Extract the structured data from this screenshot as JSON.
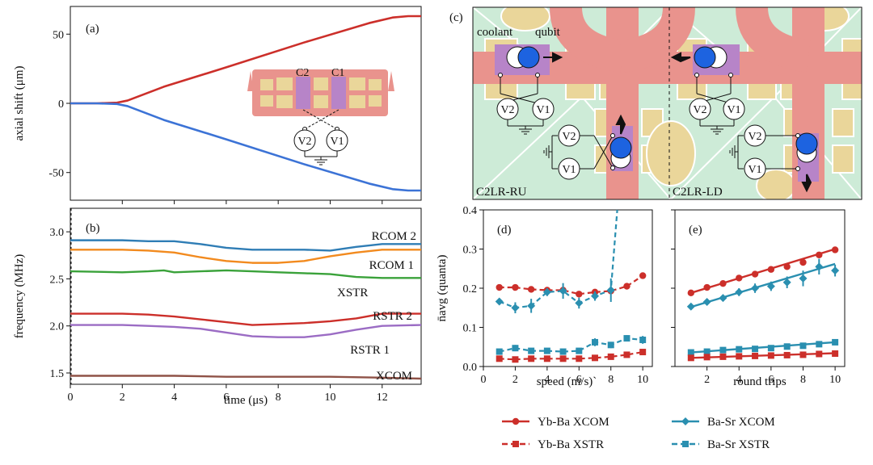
{
  "colors": {
    "red": "#cc2f2a",
    "blue": "#3c73d6",
    "teal": "#2a8fb0",
    "rcom2": "#2f7db5",
    "rcom1": "#f28a1e",
    "xstr": "#3aa23a",
    "rstr2": "#cc2f2a",
    "rstr1": "#9b6cc4",
    "xcom": "#8f5247",
    "trapPink": "#e9938d",
    "trapTan": "#ead69a",
    "trapPurple": "#b784c8",
    "trapGreen": "#cdebd7",
    "ionBlue": "#1d63e0"
  },
  "chart_data": [
    {
      "panel": "a",
      "label": "(a)",
      "type": "line",
      "xlabel": "",
      "ylabel": "axial shift (μm)",
      "xlim": [
        0,
        13.5
      ],
      "ylim": [
        -70,
        70
      ],
      "yticks": [
        -50,
        0,
        50
      ],
      "series": [
        {
          "key": "upper",
          "x": [
            0,
            1,
            1.8,
            2.2,
            3.6,
            6,
            9,
            11.5,
            12.4,
            13,
            13.5
          ],
          "values": [
            0,
            0,
            0.5,
            2,
            12,
            26,
            44,
            58,
            62,
            63,
            63
          ]
        },
        {
          "key": "lower",
          "x": [
            0,
            1,
            1.8,
            2.2,
            3.6,
            6,
            9,
            11.5,
            12.4,
            13,
            13.5
          ],
          "values": [
            0,
            0,
            -0.5,
            -2,
            -12,
            -26,
            -44,
            -58,
            -62,
            -63,
            -63
          ]
        }
      ],
      "inset": {
        "labels": [
          "C2",
          "C1"
        ],
        "voltages": [
          "V2",
          "V1"
        ]
      }
    },
    {
      "panel": "b",
      "label": "(b)",
      "type": "line",
      "xlabel": "time  (μs)",
      "ylabel": "frequency (MHz)",
      "xlim": [
        0,
        13.5
      ],
      "ylim": [
        1.38,
        3.25
      ],
      "xticks": [
        0,
        2,
        4,
        6,
        8,
        10,
        12
      ],
      "yticks": [
        1.5,
        2.0,
        2.5,
        3.0
      ],
      "series": [
        {
          "name": "RCOM 2",
          "x": [
            0,
            2,
            3,
            4,
            5,
            6,
            7,
            8,
            9,
            10,
            11,
            12,
            13.5
          ],
          "values": [
            2.91,
            2.91,
            2.9,
            2.9,
            2.87,
            2.83,
            2.81,
            2.81,
            2.81,
            2.8,
            2.84,
            2.87,
            2.87
          ]
        },
        {
          "name": "RCOM 1",
          "x": [
            0,
            2,
            3,
            4,
            5,
            6,
            7,
            8,
            9,
            10,
            11,
            12,
            13.5
          ],
          "values": [
            2.81,
            2.81,
            2.8,
            2.78,
            2.73,
            2.69,
            2.67,
            2.67,
            2.69,
            2.74,
            2.78,
            2.81,
            2.81
          ]
        },
        {
          "name": "XSTR",
          "x": [
            0,
            2,
            3,
            3.6,
            4,
            5,
            6,
            7,
            8,
            9,
            10,
            11,
            12,
            13.5
          ],
          "values": [
            2.58,
            2.57,
            2.58,
            2.59,
            2.57,
            2.58,
            2.59,
            2.58,
            2.57,
            2.56,
            2.55,
            2.52,
            2.51,
            2.51
          ]
        },
        {
          "name": "RSTR 2",
          "x": [
            0,
            2,
            3,
            4,
            5,
            6,
            7,
            8,
            9,
            10,
            11,
            12,
            13.5
          ],
          "values": [
            2.13,
            2.13,
            2.12,
            2.1,
            2.07,
            2.04,
            2.01,
            2.02,
            2.03,
            2.05,
            2.08,
            2.13,
            2.13
          ]
        },
        {
          "name": "RSTR 1",
          "x": [
            0,
            2,
            3,
            4,
            5,
            6,
            7,
            8,
            9,
            10,
            11,
            12,
            13.5
          ],
          "values": [
            2.01,
            2.01,
            2.0,
            1.99,
            1.97,
            1.93,
            1.89,
            1.88,
            1.88,
            1.91,
            1.96,
            2.0,
            2.01
          ]
        },
        {
          "name": "XCOM",
          "x": [
            0,
            2,
            4,
            6,
            8,
            10,
            12,
            13.5
          ],
          "values": [
            1.47,
            1.47,
            1.47,
            1.46,
            1.46,
            1.46,
            1.45,
            1.44
          ]
        }
      ]
    },
    {
      "panel": "d",
      "label": "(d)",
      "type": "scatter",
      "xlabel": "speed (m/s)`",
      "ylabel": "n̄avg (quanta)",
      "xlim": [
        0,
        10.6
      ],
      "ylim": [
        0,
        0.4
      ],
      "xticks": [
        0,
        2,
        4,
        6,
        8,
        10
      ],
      "yticks": [
        0.0,
        0.1,
        0.2,
        0.3,
        0.4
      ],
      "series": [
        {
          "name": "Yb-Ba XCOM",
          "x": [
            1,
            2,
            3,
            4,
            5,
            6,
            7,
            8,
            9,
            10
          ],
          "values": [
            0.202,
            0.202,
            0.197,
            0.195,
            0.195,
            0.185,
            0.19,
            0.193,
            0.205,
            0.232
          ],
          "err": [
            0.004,
            0.004,
            0.004,
            0.006,
            0.005,
            0.005,
            0.005,
            0.006,
            0.006,
            0.006
          ]
        },
        {
          "name": "Ba-Sr XCOM",
          "x": [
            1,
            2,
            3,
            4,
            5,
            6,
            7,
            8
          ],
          "values": [
            0.166,
            0.15,
            0.155,
            0.19,
            0.193,
            0.162,
            0.18,
            0.195
          ],
          "err": [
            0.008,
            0.014,
            0.018,
            0.01,
            0.02,
            0.014,
            0.012,
            0.03
          ],
          "divergeTo": 8.4
        },
        {
          "name": "Yb-Ba XSTR",
          "x": [
            1,
            2,
            3,
            4,
            5,
            6,
            7,
            8,
            9,
            10
          ],
          "values": [
            0.02,
            0.018,
            0.02,
            0.02,
            0.02,
            0.02,
            0.022,
            0.025,
            0.03,
            0.037
          ],
          "err": [
            0.003,
            0.003,
            0.003,
            0.003,
            0.003,
            0.003,
            0.004,
            0.004,
            0.004,
            0.006
          ]
        },
        {
          "name": "Ba-Sr XSTR",
          "x": [
            1,
            2,
            3,
            4,
            5,
            6,
            7,
            8,
            9,
            10
          ],
          "values": [
            0.038,
            0.047,
            0.04,
            0.04,
            0.038,
            0.04,
            0.062,
            0.055,
            0.072,
            0.068
          ],
          "err": [
            0.005,
            0.008,
            0.006,
            0.006,
            0.005,
            0.006,
            0.01,
            0.008,
            0.008,
            0.01
          ]
        }
      ]
    },
    {
      "panel": "e",
      "label": "(e)",
      "type": "scatter",
      "xlabel": "round trips",
      "ylabel": "",
      "xlim": [
        0,
        10.6
      ],
      "ylim": [
        0,
        0.4
      ],
      "xticks": [
        2,
        4,
        6,
        8,
        10
      ],
      "yticks": [
        0.0,
        0.1,
        0.2,
        0.3,
        0.4
      ],
      "series": [
        {
          "name": "Yb-Ba XCOM",
          "x": [
            1,
            2,
            3,
            4,
            5,
            6,
            7,
            8,
            9,
            10
          ],
          "values": [
            0.188,
            0.202,
            0.212,
            0.226,
            0.236,
            0.248,
            0.255,
            0.266,
            0.285,
            0.298
          ],
          "err": [
            0.004,
            0.004,
            0.004,
            0.004,
            0.004,
            0.004,
            0.004,
            0.004,
            0.005,
            0.006
          ],
          "fit": [
            0.188,
            0.3
          ]
        },
        {
          "name": "Ba-Sr XCOM",
          "x": [
            1,
            2,
            3,
            4,
            5,
            6,
            7,
            8,
            9,
            10
          ],
          "values": [
            0.153,
            0.165,
            0.175,
            0.19,
            0.2,
            0.205,
            0.215,
            0.225,
            0.255,
            0.245
          ],
          "err": [
            0.004,
            0.005,
            0.006,
            0.01,
            0.012,
            0.012,
            0.015,
            0.02,
            0.02,
            0.015
          ],
          "fit": [
            0.152,
            0.262
          ]
        },
        {
          "name": "Ba-Sr XSTR",
          "x": [
            1,
            2,
            3,
            4,
            5,
            6,
            7,
            8,
            9,
            10
          ],
          "values": [
            0.036,
            0.038,
            0.042,
            0.044,
            0.045,
            0.047,
            0.051,
            0.053,
            0.057,
            0.062
          ],
          "err": [
            0.004,
            0.004,
            0.004,
            0.004,
            0.004,
            0.004,
            0.005,
            0.005,
            0.005,
            0.005
          ],
          "fit": [
            0.036,
            0.062
          ]
        },
        {
          "name": "Yb-Ba XSTR",
          "x": [
            1,
            2,
            3,
            4,
            5,
            6,
            7,
            8,
            9,
            10
          ],
          "values": [
            0.022,
            0.024,
            0.025,
            0.026,
            0.027,
            0.028,
            0.029,
            0.03,
            0.032,
            0.033
          ],
          "err": [
            0.003,
            0.003,
            0.003,
            0.003,
            0.003,
            0.003,
            0.003,
            0.003,
            0.003,
            0.004
          ],
          "fit": [
            0.022,
            0.034
          ]
        }
      ]
    }
  ],
  "diagram_c": {
    "label": "(c)",
    "left_caption": "C2LR-RU",
    "right_caption": "C2LR-LD",
    "coolant": "coolant",
    "qubit": "qubit",
    "v1": "V1",
    "v2": "V2"
  },
  "legend": {
    "items": [
      {
        "name": "Yb-Ba XCOM",
        "marker": "circle",
        "color": "#cc2f2a",
        "dash": false
      },
      {
        "name": "Ba-Sr XCOM",
        "marker": "diamond",
        "color": "#2a8fb0",
        "dash": false
      },
      {
        "name": "Yb-Ba XSTR",
        "marker": "square",
        "color": "#cc2f2a",
        "dash": true
      },
      {
        "name": "Ba-Sr XSTR",
        "marker": "square",
        "color": "#2a8fb0",
        "dash": true
      }
    ]
  }
}
